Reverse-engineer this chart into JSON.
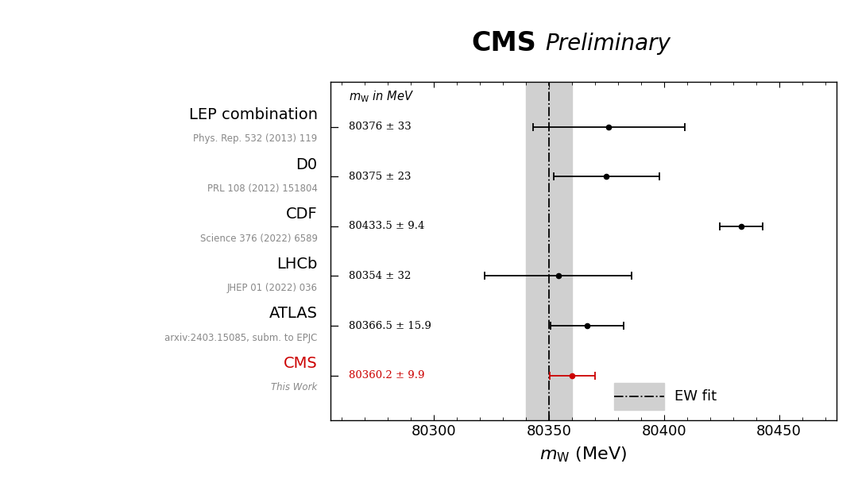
{
  "title_cms": "CMS",
  "title_prelim": "Preliminary",
  "xlabel": "$m_{\\mathrm{W}}$ (MeV)",
  "xlim": [
    80255,
    80475
  ],
  "xticks": [
    80300,
    80350,
    80400,
    80450
  ],
  "measurements": [
    {
      "label": "LEP combination",
      "ref": "Phys. Rep. 532 (2013) 119",
      "value": 80376,
      "error": 33,
      "color": "#000000",
      "label_color": "#000000",
      "ref_style": "normal"
    },
    {
      "label": "D0",
      "ref": "PRL 108 (2012) 151804",
      "value": 80375,
      "error": 23,
      "color": "#000000",
      "label_color": "#000000",
      "ref_style": "normal"
    },
    {
      "label": "CDF",
      "ref": "Science 376 (2022) 6589",
      "value": 80433.5,
      "error": 9.4,
      "color": "#000000",
      "label_color": "#000000",
      "ref_style": "normal"
    },
    {
      "label": "LHCb",
      "ref": "JHEP 01 (2022) 036",
      "value": 80354,
      "error": 32,
      "color": "#000000",
      "label_color": "#000000",
      "ref_style": "normal"
    },
    {
      "label": "ATLAS",
      "ref": "arxiv:2403.15085, subm. to EPJC",
      "value": 80366.5,
      "error": 15.9,
      "color": "#000000",
      "label_color": "#000000",
      "ref_style": "normal"
    },
    {
      "label": "CMS",
      "ref": "This Work",
      "value": 80360.2,
      "error": 9.9,
      "color": "#cc0000",
      "label_color": "#cc0000",
      "ref_style": "italic"
    }
  ],
  "value_labels": [
    "80376 ± 33",
    "80375 ± 23",
    "80433.5 ± 9.4",
    "80354 ± 32",
    "80366.5 ± 15.9",
    "80360.2 ± 9.9"
  ],
  "ew_fit_value": 80350,
  "ew_fit_band_lo": 80340,
  "ew_fit_band_hi": 80360,
  "background_color": "#ffffff"
}
